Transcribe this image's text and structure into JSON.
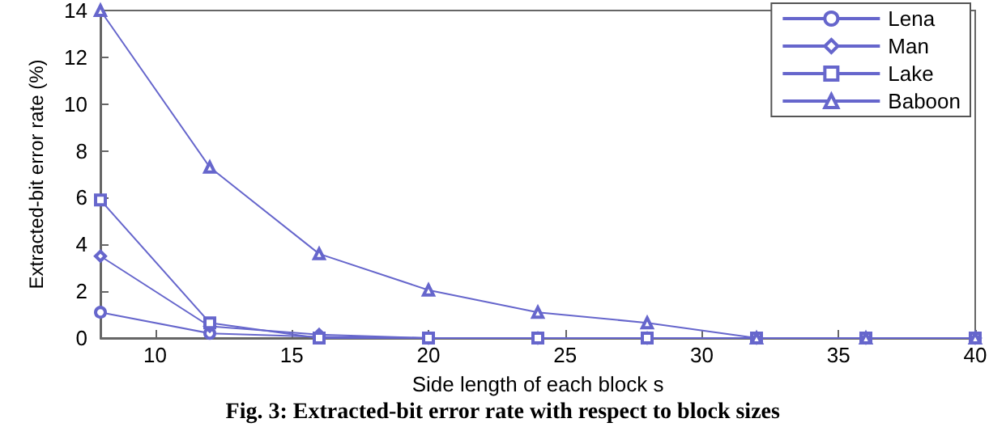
{
  "chart_data": {
    "type": "line",
    "xlabel": "Side length of each block s",
    "ylabel": "Extracted-bit error rate (%)",
    "annotations": [
      "Fig. 3: Extracted-bit error rate with respect to block sizes"
    ],
    "x": [
      8,
      12,
      16,
      20,
      24,
      28,
      32,
      36,
      40
    ],
    "series": [
      {
        "name": "Lena",
        "color": "#6666cc",
        "marker": "circle",
        "values": [
          1.1,
          0.2,
          0.05,
          0,
          0,
          0,
          0,
          0,
          0
        ]
      },
      {
        "name": "Man",
        "color": "#6666cc",
        "marker": "diamond",
        "values": [
          3.5,
          0.5,
          0.15,
          0,
          0,
          0,
          0,
          0,
          0
        ]
      },
      {
        "name": "Lake",
        "color": "#6666cc",
        "marker": "square",
        "values": [
          5.9,
          0.65,
          0,
          0,
          0,
          0,
          0,
          0,
          0
        ]
      },
      {
        "name": "Baboon",
        "color": "#6666cc",
        "marker": "triangle",
        "values": [
          14,
          7.3,
          3.6,
          2.05,
          1.1,
          0.65,
          0,
          0,
          0
        ]
      }
    ],
    "xlim": [
      8,
      40
    ],
    "xticks": [
      10,
      15,
      20,
      25,
      30,
      35,
      40
    ],
    "ylim": [
      0,
      14
    ],
    "yticks": [
      0,
      2,
      4,
      6,
      8,
      10,
      12,
      14
    ],
    "grid": false,
    "legend": "top right",
    "line_style": "solid"
  }
}
